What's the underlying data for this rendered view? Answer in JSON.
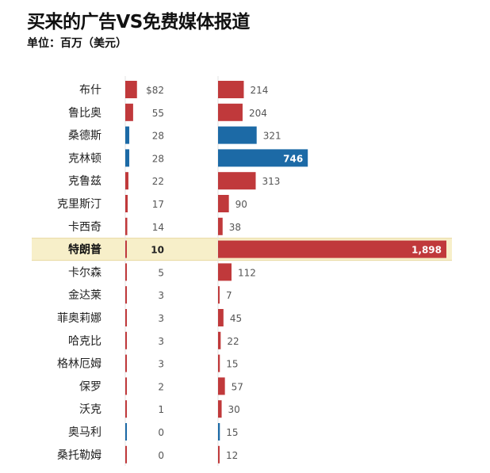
{
  "title": "买来的广告VS免费媒体报道",
  "subtitle": "单位：百万（美元）",
  "colors": {
    "republican": "#c0393b",
    "democrat": "#1c6aa6",
    "highlight_band": "#f7efc9",
    "highlight_border": "#e8d9a0",
    "grid": "#e3e3e3"
  },
  "chart_data": {
    "type": "bar",
    "title": "买来的广告VS免费媒体报道",
    "subtitle": "单位：百万（美元）",
    "categories": [
      "布什",
      "鲁比奥",
      "桑德斯",
      "克林顿",
      "克鲁兹",
      "克里斯汀",
      "卡西奇",
      "特朗普",
      "卡尔森",
      "金达莱",
      "菲奥莉娜",
      "哈克比",
      "格林厄姆",
      "保罗",
      "沃克",
      "奥马利",
      "桑托勒姆"
    ],
    "party": [
      "R",
      "R",
      "D",
      "D",
      "R",
      "R",
      "R",
      "R",
      "R",
      "R",
      "R",
      "R",
      "R",
      "R",
      "R",
      "D",
      "R"
    ],
    "highlight": "特朗普",
    "series": [
      {
        "values": [
          82,
          55,
          28,
          28,
          22,
          17,
          14,
          10,
          5,
          3,
          3,
          3,
          3,
          2,
          1,
          0,
          0
        ],
        "labels": [
          "$82",
          "55",
          "28",
          "28",
          "22",
          "17",
          "14",
          "10",
          "5",
          "3",
          "3",
          "3",
          "3",
          "2",
          "1",
          "0",
          "0"
        ]
      },
      {
        "values": [
          214,
          204,
          321,
          746,
          313,
          90,
          38,
          1898,
          112,
          7,
          45,
          22,
          15,
          57,
          30,
          15,
          12
        ],
        "labels": [
          "214",
          "204",
          "321",
          "746",
          "313",
          "90",
          "38",
          "1,898",
          "112",
          "7",
          "45",
          "22",
          "15",
          "57",
          "30",
          "15",
          "12"
        ]
      }
    ],
    "legend": "none",
    "grid": false
  }
}
